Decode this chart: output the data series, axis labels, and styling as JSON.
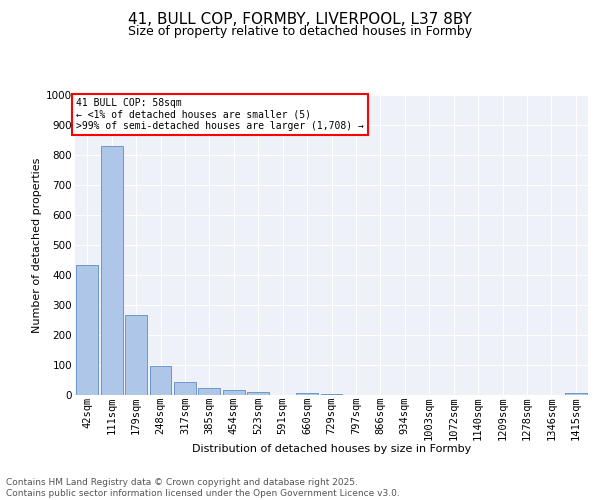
{
  "title_line1": "41, BULL COP, FORMBY, LIVERPOOL, L37 8BY",
  "title_line2": "Size of property relative to detached houses in Formby",
  "xlabel": "Distribution of detached houses by size in Formby",
  "ylabel": "Number of detached properties",
  "categories": [
    "42sqm",
    "111sqm",
    "179sqm",
    "248sqm",
    "317sqm",
    "385sqm",
    "454sqm",
    "523sqm",
    "591sqm",
    "660sqm",
    "729sqm",
    "797sqm",
    "866sqm",
    "934sqm",
    "1003sqm",
    "1072sqm",
    "1140sqm",
    "1209sqm",
    "1278sqm",
    "1346sqm",
    "1415sqm"
  ],
  "values": [
    435,
    830,
    268,
    97,
    44,
    22,
    16,
    10,
    0,
    8,
    5,
    0,
    0,
    0,
    0,
    0,
    0,
    0,
    0,
    0,
    7
  ],
  "bar_color": "#aec6e8",
  "bar_edge_color": "#5b8ec4",
  "annotation_text_line1": "41 BULL COP: 58sqm",
  "annotation_text_line2": "← <1% of detached houses are smaller (5)",
  "annotation_text_line3": ">99% of semi-detached houses are larger (1,708) →",
  "ylim": [
    0,
    1000
  ],
  "yticks": [
    0,
    100,
    200,
    300,
    400,
    500,
    600,
    700,
    800,
    900,
    1000
  ],
  "footer_line1": "Contains HM Land Registry data © Crown copyright and database right 2025.",
  "footer_line2": "Contains public sector information licensed under the Open Government Licence v3.0.",
  "background_color": "#eef2f8",
  "grid_color": "#ffffff",
  "title1_fontsize": 11,
  "title2_fontsize": 9,
  "ylabel_fontsize": 8,
  "xlabel_fontsize": 8,
  "tick_fontsize": 7.5,
  "footer_fontsize": 6.5
}
